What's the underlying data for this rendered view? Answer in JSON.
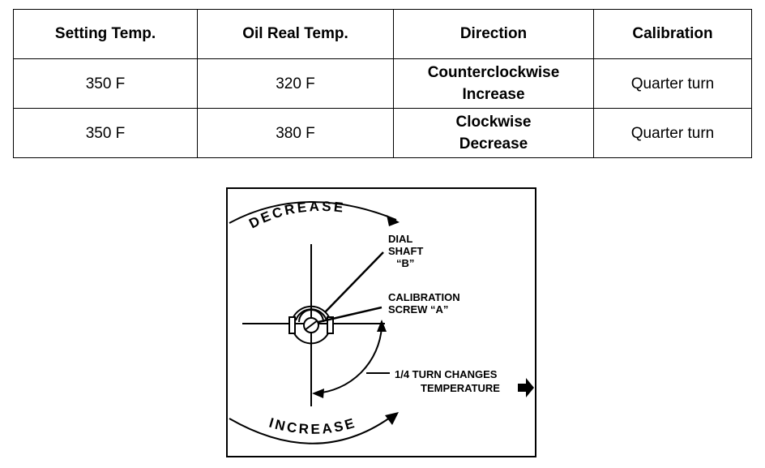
{
  "table": {
    "headers": [
      "Setting Temp.",
      "Oil Real Temp.",
      "Direction",
      "Calibration"
    ],
    "rows": [
      {
        "setting_temp": "350 F",
        "oil_real_temp": "320 F",
        "direction_line1": "Counterclockwise",
        "direction_line2": "Increase",
        "calibration": "Quarter turn"
      },
      {
        "setting_temp": "350 F",
        "oil_real_temp": "380 F",
        "direction_line1": "Clockwise",
        "direction_line2": "Decrease",
        "calibration": "Quarter turn"
      }
    ]
  },
  "diagram": {
    "decrease_label": "DECREASE",
    "increase_label": "INCREASE",
    "dial_shaft_line1": "DIAL",
    "dial_shaft_line2": "SHAFT",
    "dial_shaft_line3": "“B”",
    "calibration_screw_line1": "CALIBRATION",
    "calibration_screw_line2": "SCREW “A”",
    "turn_note_line1": "1/4 TURN CHANGES",
    "turn_note_line2": "TEMPERATURE"
  }
}
